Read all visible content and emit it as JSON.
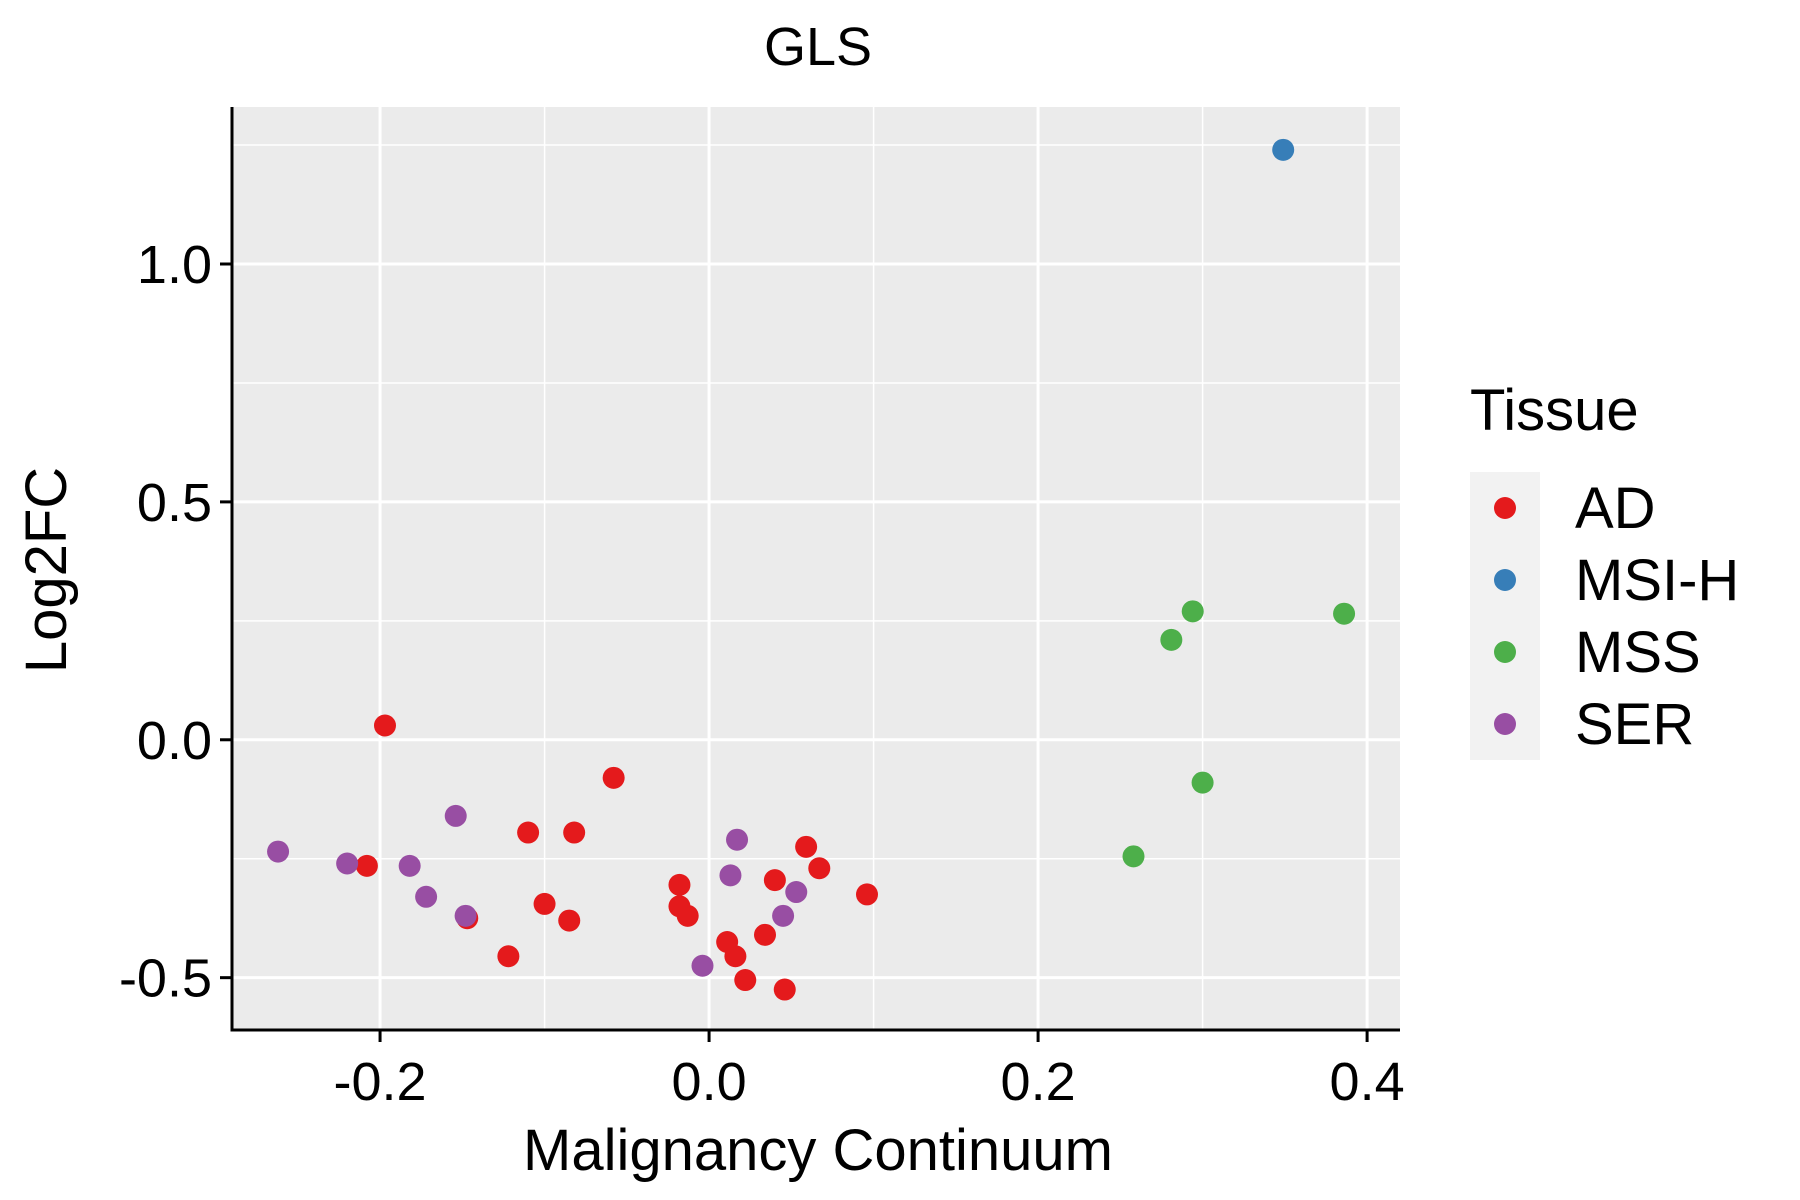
{
  "chart_data": {
    "type": "scatter",
    "title": "GLS",
    "xlabel": "Malignancy Continuum",
    "ylabel": "Log2FC",
    "xlim": [
      -0.29,
      0.42
    ],
    "ylim": [
      -0.61,
      1.33
    ],
    "x_ticks": [
      -0.2,
      0.0,
      0.2,
      0.4
    ],
    "x_tick_labels": [
      "-0.2",
      "0.0",
      "0.2",
      "0.4"
    ],
    "y_ticks": [
      -0.5,
      0.0,
      0.5,
      1.0
    ],
    "y_tick_labels": [
      "-0.5",
      "0.0",
      "0.5",
      "1.0"
    ],
    "grid": true,
    "legend": {
      "title": "Tissue",
      "position": "right"
    },
    "series": [
      {
        "name": "AD",
        "color": "#E41A1C",
        "points": [
          [
            -0.197,
            0.03
          ],
          [
            -0.208,
            -0.265
          ],
          [
            -0.11,
            -0.195
          ],
          [
            -0.082,
            -0.195
          ],
          [
            -0.058,
            -0.08
          ],
          [
            -0.1,
            -0.345
          ],
          [
            -0.085,
            -0.38
          ],
          [
            -0.122,
            -0.455
          ],
          [
            -0.147,
            -0.375
          ],
          [
            -0.018,
            -0.305
          ],
          [
            -0.018,
            -0.35
          ],
          [
            -0.013,
            -0.37
          ],
          [
            0.011,
            -0.425
          ],
          [
            0.016,
            -0.455
          ],
          [
            0.022,
            -0.505
          ],
          [
            0.034,
            -0.41
          ],
          [
            0.04,
            -0.295
          ],
          [
            0.046,
            -0.525
          ],
          [
            0.059,
            -0.225
          ],
          [
            0.067,
            -0.27
          ],
          [
            0.096,
            -0.325
          ]
        ]
      },
      {
        "name": "MSI-H",
        "color": "#377EB8",
        "points": [
          [
            0.349,
            1.24
          ]
        ]
      },
      {
        "name": "MSS",
        "color": "#4DAF4A",
        "points": [
          [
            0.281,
            0.21
          ],
          [
            0.294,
            0.27
          ],
          [
            0.386,
            0.265
          ],
          [
            0.3,
            -0.09
          ],
          [
            0.258,
            -0.245
          ]
        ]
      },
      {
        "name": "SER",
        "color": "#984EA3",
        "points": [
          [
            -0.262,
            -0.235
          ],
          [
            -0.22,
            -0.26
          ],
          [
            -0.182,
            -0.265
          ],
          [
            -0.172,
            -0.33
          ],
          [
            -0.154,
            -0.16
          ],
          [
            -0.148,
            -0.37
          ],
          [
            0.017,
            -0.21
          ],
          [
            0.013,
            -0.285
          ],
          [
            -0.004,
            -0.475
          ],
          [
            0.053,
            -0.32
          ],
          [
            0.045,
            -0.37
          ]
        ]
      }
    ]
  }
}
